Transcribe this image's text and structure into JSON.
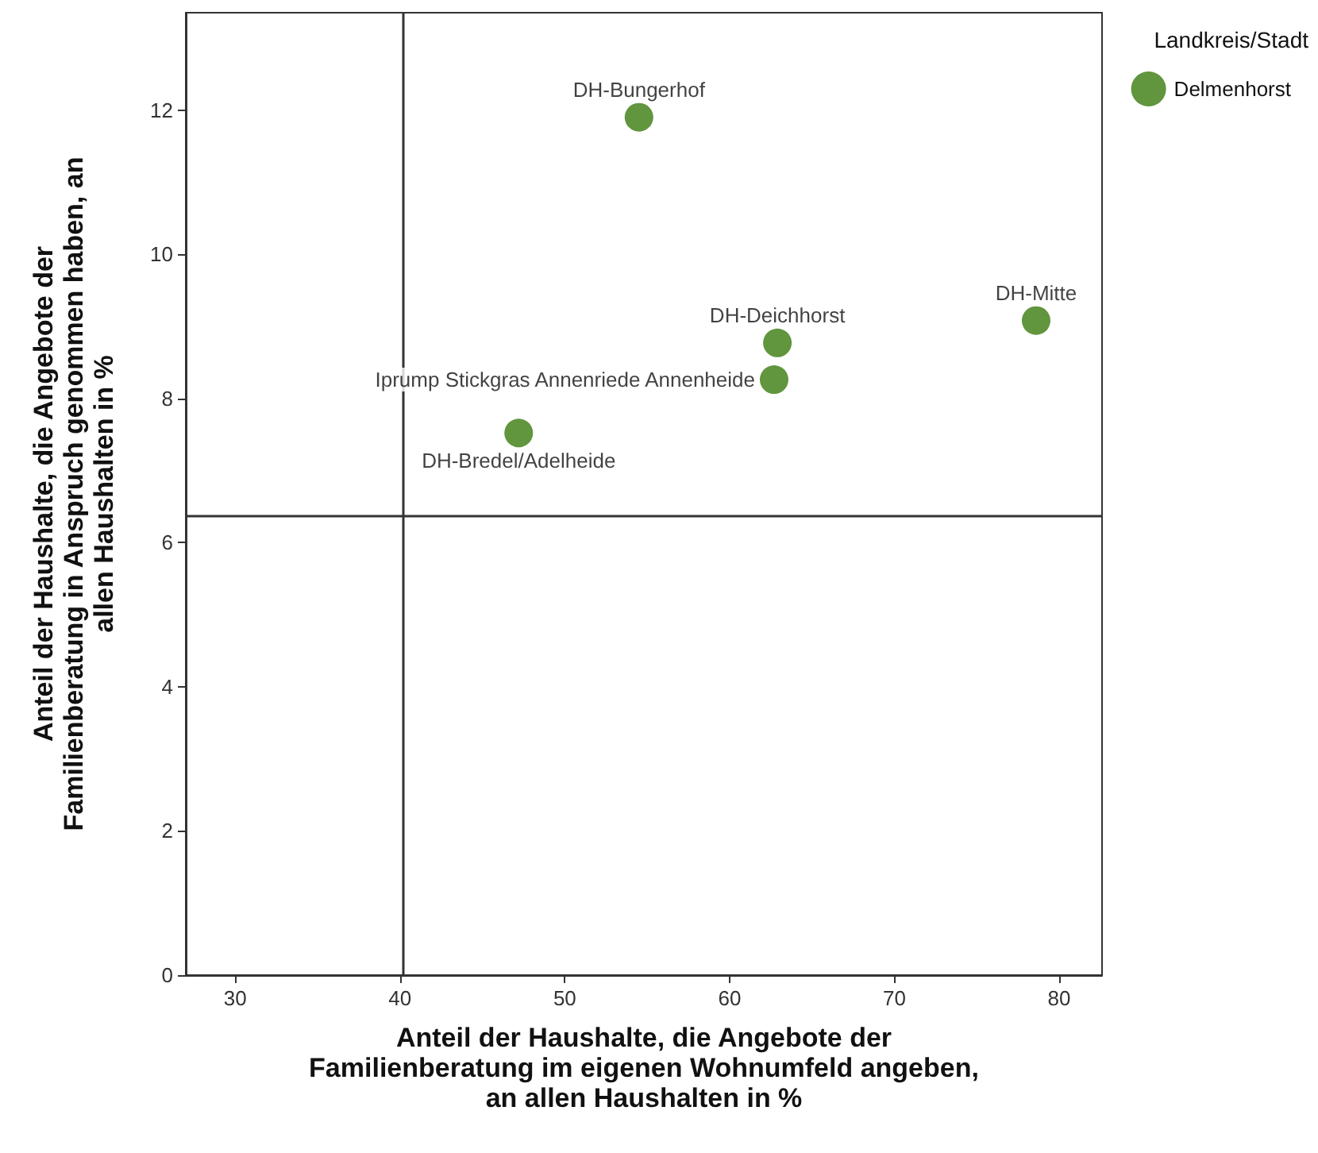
{
  "chart_data": {
    "type": "scatter",
    "xlabel": "Anteil der Haushalte, die Angebote der\nFamilienberatung im eigenen Wohnumfeld angeben,\nan allen Haushalten in %",
    "ylabel": "Anteil der Haushalte, die Angebote der\nFamilienberatung in Anspruch genommen haben, an\nallen Haushalten in %",
    "legend_title": "Landkreis/Stadt",
    "series": [
      {
        "name": "Delmenhorst",
        "color": "#3a7a0e",
        "x": [
          54.5,
          62.9,
          62.7,
          47.2,
          78.6
        ],
        "values": [
          11.9,
          8.77,
          8.26,
          7.52,
          9.08
        ]
      }
    ],
    "annotations": [
      {
        "text": "DH-Bungerhof",
        "x": 54.5,
        "y": 11.9
      },
      {
        "text": "DH-Deichhorst",
        "x": 62.9,
        "y": 8.77
      },
      {
        "text": "Iprump Stickgras Annenriede Annenheide",
        "x": 62.7,
        "y": 8.26
      },
      {
        "text": "DH-Bredel/Adelheide",
        "x": 47.2,
        "y": 7.52
      },
      {
        "text": "DH-Mitte",
        "x": 78.6,
        "y": 9.08
      }
    ],
    "xlim": [
      27,
      82.6
    ],
    "xticks": [
      30,
      40,
      50,
      60,
      70,
      80
    ],
    "ylim": [
      0,
      13.35
    ],
    "yticks": [
      0,
      2,
      4,
      6,
      8,
      10,
      12
    ],
    "ref_lines": [
      {
        "axis": "x",
        "value": 40.2,
        "color": "#333333"
      },
      {
        "axis": "y",
        "value": 6.37,
        "color": "#333333"
      }
    ],
    "grid": false,
    "legend": "top right",
    "marker": "circle"
  }
}
